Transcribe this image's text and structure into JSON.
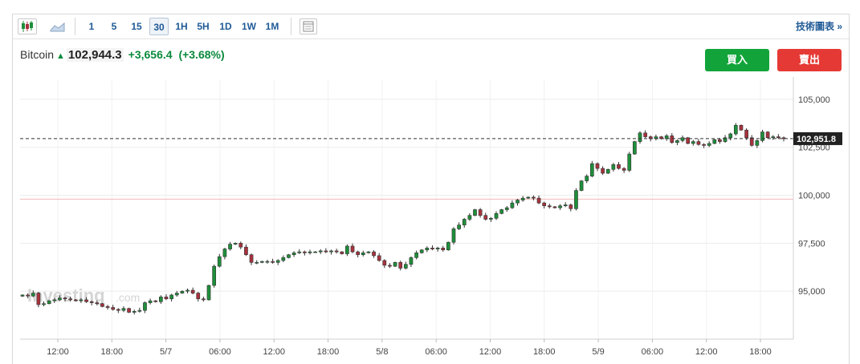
{
  "toolbar": {
    "intervals": [
      "1",
      "5",
      "15",
      "30",
      "1H",
      "5H",
      "1D",
      "1W",
      "1M"
    ],
    "active_interval": "30",
    "technical_label": "技術圖表 »"
  },
  "header": {
    "name": "Bitcoin",
    "price": "102,944.3",
    "change": "+3,656.4",
    "change_pct": "(+3.68%)"
  },
  "buttons": {
    "buy": "買入",
    "sell": "賣出"
  },
  "watermark": {
    "brand": "Investing",
    "suffix": ".com"
  },
  "colors": {
    "up": "#1e8f3a",
    "down": "#a8323e",
    "accent": "#1f5a96",
    "buy": "#12a43a",
    "sell": "#e53935"
  },
  "chart_data": {
    "type": "candlestick",
    "ylim": [
      92500,
      106000
    ],
    "y_ticks": [
      "95,000",
      "97,500",
      "100,000",
      "102,500",
      "105,000"
    ],
    "y_tick_values": [
      95000,
      97500,
      100000,
      102500,
      105000
    ],
    "x_tick_labels": [
      "12:00",
      "18:00",
      "5/7",
      "06:00",
      "12:00",
      "18:00",
      "5/8",
      "06:00",
      "12:00",
      "18:00",
      "5/9",
      "06:00",
      "12:00",
      "18:00"
    ],
    "current_price_label": "102,951.8",
    "current_price": 102951.8,
    "reference_line": 99800,
    "series_close": [
      94800,
      94750,
      94900,
      94300,
      94350,
      94500,
      94550,
      94650,
      94600,
      94550,
      94500,
      94550,
      94450,
      94400,
      94350,
      94200,
      94150,
      94050,
      94000,
      94100,
      93900,
      93950,
      94000,
      94400,
      94500,
      94450,
      94700,
      94600,
      94800,
      94900,
      95000,
      95050,
      94900,
      94600,
      94550,
      95300,
      96300,
      96800,
      97200,
      97450,
      97500,
      97300,
      96900,
      96500,
      96500,
      96550,
      96550,
      96500,
      96600,
      96750,
      96900,
      97000,
      97050,
      97000,
      97050,
      97050,
      97100,
      97050,
      97100,
      97050,
      96950,
      97350,
      97050,
      96900,
      97000,
      97050,
      96850,
      96600,
      96350,
      96300,
      96500,
      96200,
      96400,
      96750,
      97000,
      97150,
      97250,
      97200,
      97250,
      97150,
      97550,
      98250,
      98450,
      98750,
      98950,
      99250,
      98950,
      98750,
      98800,
      99050,
      99250,
      99350,
      99600,
      99750,
      99850,
      99900,
      99850,
      99600,
      99450,
      99400,
      99350,
      99450,
      99500,
      99300,
      100250,
      100750,
      101000,
      101650,
      101400,
      101150,
      101350,
      101600,
      101400,
      101300,
      102150,
      102800,
      103250,
      103050,
      102950,
      103050,
      102950,
      103100,
      102750,
      102850,
      103000,
      102700,
      102800,
      102650,
      102600,
      102700,
      102900,
      102800,
      103000,
      103200,
      103650,
      103400,
      103000,
      102600,
      102850,
      103300,
      103000,
      103050,
      103000,
      102950
    ]
  }
}
